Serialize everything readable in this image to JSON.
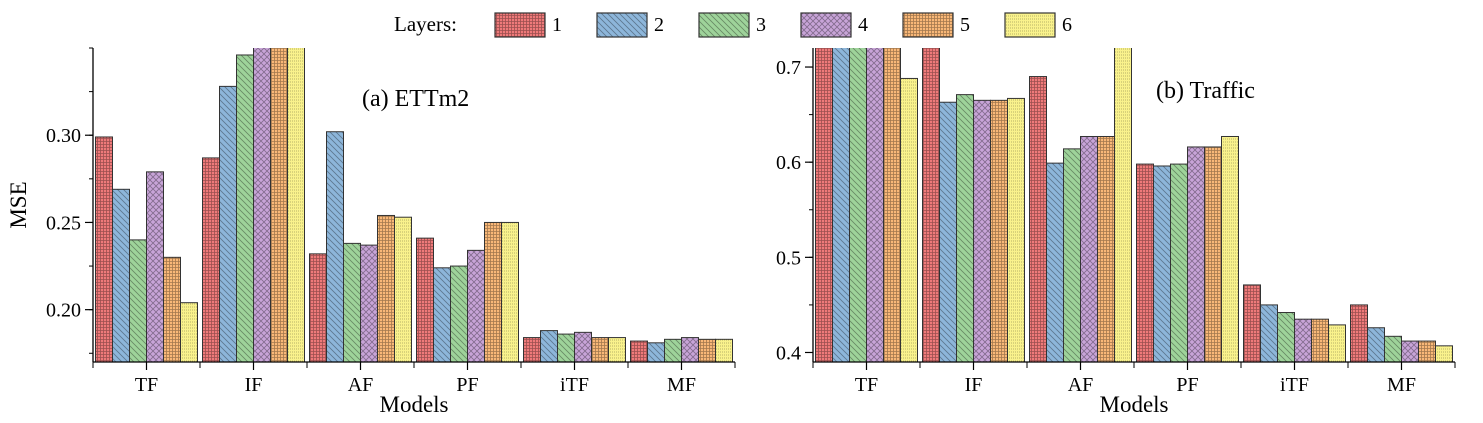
{
  "legend": {
    "title": "Layers:",
    "items": [
      {
        "label": "1",
        "color": "#ef7a7a",
        "pattern": "grid"
      },
      {
        "label": "2",
        "color": "#8db6da",
        "pattern": "back-diagonal"
      },
      {
        "label": "3",
        "color": "#9ed39a",
        "pattern": "back-diagonal"
      },
      {
        "label": "4",
        "color": "#c8a4d8",
        "pattern": "cross"
      },
      {
        "label": "5",
        "color": "#f9b878",
        "pattern": "grid"
      },
      {
        "label": "6",
        "color": "#f9f28c",
        "pattern": "dots"
      }
    ]
  },
  "chart_data": [
    {
      "type": "bar",
      "panel_label": "(a) ETTm2",
      "xlabel": "Models",
      "ylabel": "MSE",
      "categories": [
        "TF",
        "IF",
        "AF",
        "PF",
        "iTF",
        "MF"
      ],
      "ylim": [
        0.17,
        0.35
      ],
      "yticks": [
        0.2,
        0.25,
        0.3
      ],
      "ytick_labels": [
        "0.20",
        "0.25",
        "0.30"
      ],
      "series": [
        {
          "name": "1",
          "values": [
            0.299,
            0.287,
            0.232,
            0.241,
            0.184,
            0.182
          ]
        },
        {
          "name": "2",
          "values": [
            0.269,
            0.328,
            0.302,
            0.224,
            0.188,
            0.181
          ]
        },
        {
          "name": "3",
          "values": [
            0.24,
            0.346,
            0.238,
            0.225,
            0.186,
            0.183
          ]
        },
        {
          "name": "4",
          "values": [
            0.279,
            0.36,
            0.237,
            0.234,
            0.187,
            0.184
          ]
        },
        {
          "name": "5",
          "values": [
            0.23,
            0.36,
            0.254,
            0.25,
            0.184,
            0.183
          ]
        },
        {
          "name": "6",
          "values": [
            0.204,
            0.36,
            0.253,
            0.25,
            0.184,
            0.183
          ]
        }
      ]
    },
    {
      "type": "bar",
      "panel_label": "(b) Traffic",
      "xlabel": "Models",
      "ylabel": "",
      "categories": [
        "TF",
        "IF",
        "AF",
        "PF",
        "iTF",
        "MF"
      ],
      "ylim": [
        0.39,
        0.72
      ],
      "yticks": [
        0.4,
        0.5,
        0.6,
        0.7
      ],
      "ytick_labels": [
        "0.4",
        "0.5",
        "0.6",
        "0.7"
      ],
      "series": [
        {
          "name": "1",
          "values": [
            0.75,
            0.75,
            0.69,
            0.598,
            0.471,
            0.45
          ]
        },
        {
          "name": "2",
          "values": [
            0.75,
            0.663,
            0.599,
            0.596,
            0.45,
            0.426
          ]
        },
        {
          "name": "3",
          "values": [
            0.75,
            0.671,
            0.614,
            0.598,
            0.442,
            0.417
          ]
        },
        {
          "name": "4",
          "values": [
            0.75,
            0.665,
            0.627,
            0.616,
            0.435,
            0.412
          ]
        },
        {
          "name": "5",
          "values": [
            0.75,
            0.665,
            0.627,
            0.616,
            0.435,
            0.412
          ]
        },
        {
          "name": "6",
          "values": [
            0.688,
            0.667,
            0.75,
            0.627,
            0.429,
            0.407
          ]
        }
      ]
    }
  ]
}
